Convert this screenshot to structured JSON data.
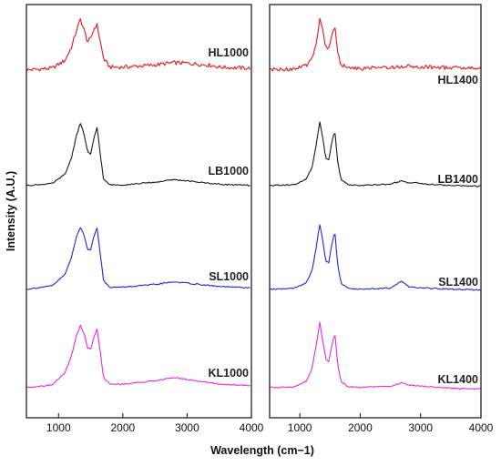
{
  "chart_data": [
    {
      "type": "line",
      "panel": "left",
      "xlabel": "Wavelength (cm−1)",
      "ylabel": "Intensity (A.U.)",
      "xlim": [
        500,
        4000
      ],
      "xticks": [
        "1000",
        "2000",
        "3000",
        "4000"
      ],
      "grid": false,
      "series": [
        {
          "name": "HL1000",
          "color": "#e8141b",
          "x": [
            500,
            900,
            1100,
            1200,
            1280,
            1340,
            1400,
            1450,
            1500,
            1550,
            1600,
            1650,
            1700,
            1800,
            2000,
            2500,
            2800,
            3000,
            3400,
            3500,
            4000
          ],
          "y": [
            0.05,
            0.08,
            0.22,
            0.45,
            0.75,
            0.95,
            0.75,
            0.55,
            0.6,
            0.78,
            0.85,
            0.55,
            0.25,
            0.1,
            0.1,
            0.14,
            0.18,
            0.17,
            0.13,
            0.1,
            0.08
          ]
        },
        {
          "name": "LB1000",
          "color": "#1a1a1a",
          "x": [
            500,
            900,
            1100,
            1200,
            1280,
            1340,
            1400,
            1450,
            1500,
            1550,
            1600,
            1650,
            1700,
            1800,
            2000,
            2500,
            2800,
            3000,
            3500,
            4000
          ],
          "y": [
            0.03,
            0.06,
            0.2,
            0.45,
            0.8,
            0.98,
            0.8,
            0.55,
            0.5,
            0.75,
            0.92,
            0.5,
            0.12,
            0.04,
            0.04,
            0.08,
            0.12,
            0.1,
            0.05,
            0.03
          ]
        },
        {
          "name": "SL1000",
          "color": "#2424d6",
          "x": [
            500,
            900,
            1100,
            1200,
            1280,
            1340,
            1400,
            1450,
            1500,
            1550,
            1600,
            1650,
            1700,
            1800,
            2000,
            2500,
            2800,
            3000,
            3500,
            4000
          ],
          "y": [
            0.03,
            0.08,
            0.25,
            0.5,
            0.82,
            0.95,
            0.82,
            0.62,
            0.62,
            0.82,
            0.95,
            0.55,
            0.15,
            0.06,
            0.06,
            0.1,
            0.14,
            0.12,
            0.07,
            0.05
          ]
        },
        {
          "name": "KL1000",
          "color": "#e12ae1",
          "x": [
            500,
            900,
            1100,
            1200,
            1280,
            1340,
            1400,
            1450,
            1500,
            1550,
            1600,
            1650,
            1700,
            1800,
            2000,
            2500,
            2800,
            3000,
            3500,
            4000
          ],
          "y": [
            0.03,
            0.07,
            0.25,
            0.5,
            0.8,
            0.95,
            0.82,
            0.62,
            0.6,
            0.78,
            0.9,
            0.55,
            0.18,
            0.08,
            0.08,
            0.13,
            0.18,
            0.15,
            0.08,
            0.06
          ]
        }
      ]
    },
    {
      "type": "line",
      "panel": "right",
      "xlabel": "Wavelength (cm−1)",
      "xlim": [
        500,
        4000
      ],
      "xticks": [
        "1000",
        "2000",
        "3000",
        "4000"
      ],
      "grid": false,
      "series": [
        {
          "name": "HL1400",
          "color": "#e8141b",
          "x": [
            500,
            900,
            1100,
            1200,
            1280,
            1330,
            1380,
            1430,
            1480,
            1530,
            1580,
            1620,
            1680,
            1800,
            2000,
            2500,
            2800,
            3000,
            3500,
            4000
          ],
          "y": [
            0.05,
            0.07,
            0.12,
            0.25,
            0.55,
            0.98,
            0.75,
            0.45,
            0.45,
            0.65,
            0.85,
            0.4,
            0.15,
            0.08,
            0.08,
            0.1,
            0.12,
            0.11,
            0.09,
            0.08
          ]
        },
        {
          "name": "LB1400",
          "color": "#1a1a1a",
          "x": [
            500,
            900,
            1100,
            1200,
            1280,
            1330,
            1380,
            1430,
            1480,
            1530,
            1580,
            1620,
            1680,
            1800,
            2000,
            2500,
            2680,
            2800,
            2900,
            3000,
            3500,
            4000
          ],
          "y": [
            0.03,
            0.04,
            0.12,
            0.3,
            0.7,
            1.0,
            0.75,
            0.45,
            0.42,
            0.7,
            0.88,
            0.45,
            0.12,
            0.04,
            0.03,
            0.05,
            0.1,
            0.07,
            0.08,
            0.06,
            0.03,
            0.02
          ]
        },
        {
          "name": "SL1400",
          "color": "#2424d6",
          "x": [
            500,
            900,
            1100,
            1200,
            1280,
            1330,
            1380,
            1430,
            1480,
            1530,
            1580,
            1620,
            1680,
            1800,
            2000,
            2500,
            2680,
            2800,
            3000,
            3500,
            4000
          ],
          "y": [
            0.03,
            0.04,
            0.12,
            0.3,
            0.7,
            1.0,
            0.75,
            0.45,
            0.42,
            0.7,
            0.9,
            0.45,
            0.12,
            0.04,
            0.03,
            0.05,
            0.15,
            0.07,
            0.05,
            0.03,
            0.02
          ]
        },
        {
          "name": "KL1400",
          "color": "#e12ae1",
          "x": [
            500,
            900,
            1100,
            1200,
            1280,
            1330,
            1380,
            1430,
            1480,
            1530,
            1580,
            1620,
            1680,
            1800,
            2000,
            2500,
            2680,
            2800,
            3000,
            3500,
            4000
          ],
          "y": [
            0.03,
            0.04,
            0.12,
            0.3,
            0.7,
            1.0,
            0.72,
            0.45,
            0.42,
            0.65,
            0.85,
            0.42,
            0.12,
            0.04,
            0.03,
            0.05,
            0.1,
            0.07,
            0.05,
            0.02,
            0.01
          ]
        }
      ]
    }
  ]
}
